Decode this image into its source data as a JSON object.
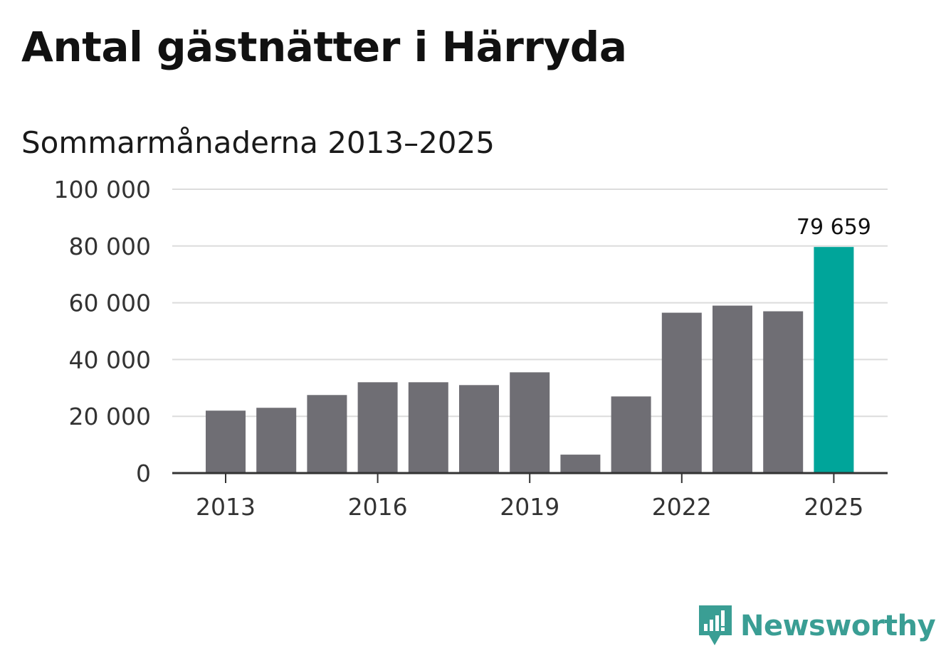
{
  "title": "Antal gästnätter i Härryda",
  "subtitle": "Sommarmånaderna 2013–2025",
  "brand": {
    "name": "Newsworthy",
    "icon": "bar-chart-speech-bubble-icon"
  },
  "colors": {
    "bar": "#6f6e74",
    "highlight": "#00a59a",
    "grid": "#dcdcdc",
    "axis": "#333333",
    "brand": "#3a9e94"
  },
  "chart_data": {
    "type": "bar",
    "categories": [
      "2013",
      "2014",
      "2015",
      "2016",
      "2017",
      "2018",
      "2019",
      "2020",
      "2021",
      "2022",
      "2023",
      "2024",
      "2025"
    ],
    "values": [
      22000,
      23000,
      27500,
      32000,
      32000,
      31000,
      35500,
      6500,
      27000,
      56500,
      59000,
      57000,
      79659
    ],
    "ylim": [
      0,
      100000
    ],
    "yticks": [
      {
        "value": 0,
        "label": "0"
      },
      {
        "value": 20000,
        "label": "20 000"
      },
      {
        "value": 40000,
        "label": "40 000"
      },
      {
        "value": 60000,
        "label": "60 000"
      },
      {
        "value": 80000,
        "label": "80 000"
      },
      {
        "value": 100000,
        "label": "100 000"
      }
    ],
    "xticks": [
      "2013",
      "2016",
      "2019",
      "2022",
      "2025"
    ],
    "highlight_category": "2025",
    "data_labels": [
      {
        "category": "2025",
        "label": "79 659"
      }
    ],
    "grid": true,
    "xlabel": "",
    "ylabel": ""
  }
}
